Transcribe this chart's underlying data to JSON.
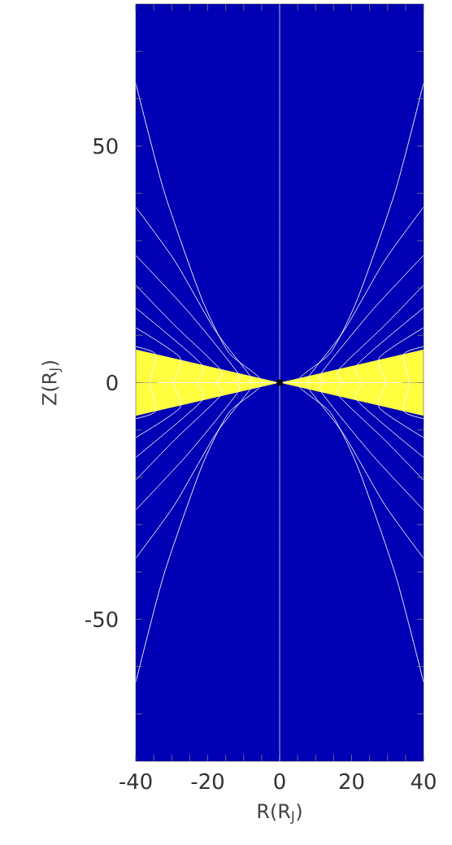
{
  "chart_data": {
    "type": "line",
    "xlabel": "R(R$_{J}$)",
    "ylabel": "Z(R$_{J}$)",
    "xlim": [
      -40,
      40
    ],
    "ylim": [
      -80,
      80
    ],
    "xticks": [
      -40,
      {
        "value": -35,
        "label": null
      },
      {
        "value": -30,
        "label": null
      },
      {
        "value": -25,
        "label": null
      },
      -20,
      {
        "value": -15,
        "label": null
      },
      {
        "value": -10,
        "label": null
      },
      {
        "value": -5,
        "label": null
      },
      0,
      {
        "value": 5,
        "label": null
      },
      {
        "value": 10,
        "label": null
      },
      {
        "value": 15,
        "label": null
      },
      20,
      {
        "value": 25,
        "label": null
      },
      {
        "value": 30,
        "label": null
      },
      {
        "value": 35,
        "label": null
      },
      40
    ],
    "yticks": [
      {
        "value": -70,
        "label": null
      },
      {
        "value": -60,
        "label": null
      },
      -50,
      {
        "value": -40,
        "label": null
      },
      {
        "value": -30,
        "label": null
      },
      {
        "value": -20,
        "label": null
      },
      {
        "value": -10,
        "label": null
      },
      0,
      {
        "value": 10,
        "label": null
      },
      {
        "value": 20,
        "label": null
      },
      {
        "value": 30,
        "label": null
      },
      {
        "value": 40,
        "label": null
      },
      50,
      {
        "value": 60,
        "label": null
      },
      {
        "value": 70,
        "label": null
      }
    ],
    "bands": [
      {
        "axis": "x",
        "from": -40,
        "to": 40,
        "color": "#0000b4"
      }
    ],
    "series": [
      {
        "type": "area",
        "color": "#ffff40",
        "x": [
          -40,
          0,
          40
        ],
        "values": [
          7,
          0,
          7
        ]
      },
      {
        "type": "area",
        "color": "#ffff40",
        "x": [
          -40,
          0,
          40
        ],
        "values": [
          -7,
          0,
          -7
        ]
      },
      {
        "color": "#c8c8e6",
        "x": [
          0,
          0
        ],
        "values": [
          -80,
          80
        ]
      },
      {
        "color": "#ffffff",
        "x": [
          -34,
          34
        ],
        "values": [
          0,
          0
        ]
      },
      {
        "color": "#ffffff",
        "x": [
          40,
          32.2,
          21.7,
          14.2,
          4.8,
          14.2,
          21.7,
          32.2,
          40
        ],
        "values": [
          63.3,
          40.6,
          17.8,
          6.4,
          0,
          -6.4,
          -17.8,
          -40.6,
          -63.3
        ]
      },
      {
        "color": "#ffffff",
        "x": [
          40,
          29.2,
          17.9,
          8.1,
          8.5,
          8.1,
          17.9,
          29.2,
          40
        ],
        "values": [
          37.1,
          25.8,
          11.0,
          1.3,
          0,
          -1.3,
          -11.0,
          -25.8,
          -37.1
        ]
      },
      {
        "color": "#ffffff",
        "x": [
          40,
          25.4,
          11.5,
          12.5,
          11.5,
          25.4,
          40
        ],
        "values": [
          26.9,
          15.0,
          1.9,
          0,
          -1.9,
          -15.0,
          -26.9
        ]
      },
      {
        "color": "#ffffff",
        "x": [
          40,
          29.2,
          16.4,
          17.5,
          16.4,
          29.2,
          40
        ],
        "values": [
          20.6,
          12.1,
          2.7,
          0,
          -2.7,
          -12.1,
          -20.6
        ]
      },
      {
        "color": "#ffffff",
        "x": [
          40,
          21.7,
          23,
          21.7,
          40
        ],
        "values": [
          15.8,
          3.9,
          0,
          -3.9,
          -15.8
        ]
      },
      {
        "color": "#ffffff",
        "x": [
          40,
          27.7,
          29.5,
          27.7,
          40
        ],
        "values": [
          11.6,
          5.3,
          0,
          -5.3,
          -11.6
        ]
      },
      {
        "color": "#ffffff",
        "x": [
          40,
          34.5,
          36,
          34.5,
          40
        ],
        "values": [
          7.6,
          6,
          0,
          -6,
          -7.6
        ]
      },
      {
        "color": "#ffffff",
        "x": [
          -40,
          -32.2,
          -21.7,
          -14.2,
          -4.8,
          -14.2,
          -21.7,
          -32.2,
          -40
        ],
        "values": [
          63.3,
          40.6,
          17.8,
          6.4,
          0,
          -6.4,
          -17.8,
          -40.6,
          -63.3
        ]
      },
      {
        "color": "#ffffff",
        "x": [
          -40,
          -29.2,
          -17.9,
          -8.1,
          -8.5,
          -8.1,
          -17.9,
          -29.2,
          -40
        ],
        "values": [
          37.1,
          25.8,
          11.0,
          1.3,
          0,
          -1.3,
          -11.0,
          -25.8,
          -37.1
        ]
      },
      {
        "color": "#ffffff",
        "x": [
          -40,
          -25.4,
          -11.5,
          -12.5,
          -11.5,
          -25.4,
          -40
        ],
        "values": [
          26.9,
          15.0,
          1.9,
          0,
          -1.9,
          -15.0,
          -26.9
        ]
      },
      {
        "color": "#ffffff",
        "x": [
          -40,
          -29.2,
          -16.4,
          -17.5,
          -16.4,
          -29.2,
          -40
        ],
        "values": [
          20.6,
          12.1,
          2.7,
          0,
          -2.7,
          -12.1,
          -20.6
        ]
      },
      {
        "color": "#ffffff",
        "x": [
          -40,
          -21.7,
          -23,
          -21.7,
          -40
        ],
        "values": [
          15.8,
          3.9,
          0,
          -3.9,
          -15.8
        ]
      },
      {
        "color": "#ffffff",
        "x": [
          -40,
          -27.7,
          -29.5,
          -27.7,
          -40
        ],
        "values": [
          11.6,
          5.3,
          0,
          -5.3,
          -11.6
        ]
      },
      {
        "color": "#ffffff",
        "x": [
          -40,
          -34.5,
          -36,
          -34.5,
          -40
        ],
        "values": [
          7.6,
          6,
          0,
          -6,
          -7.6
        ]
      },
      {
        "type": "scatter",
        "marker": "square",
        "color": "#000000",
        "x": [
          0
        ],
        "values": [
          0
        ]
      }
    ]
  }
}
